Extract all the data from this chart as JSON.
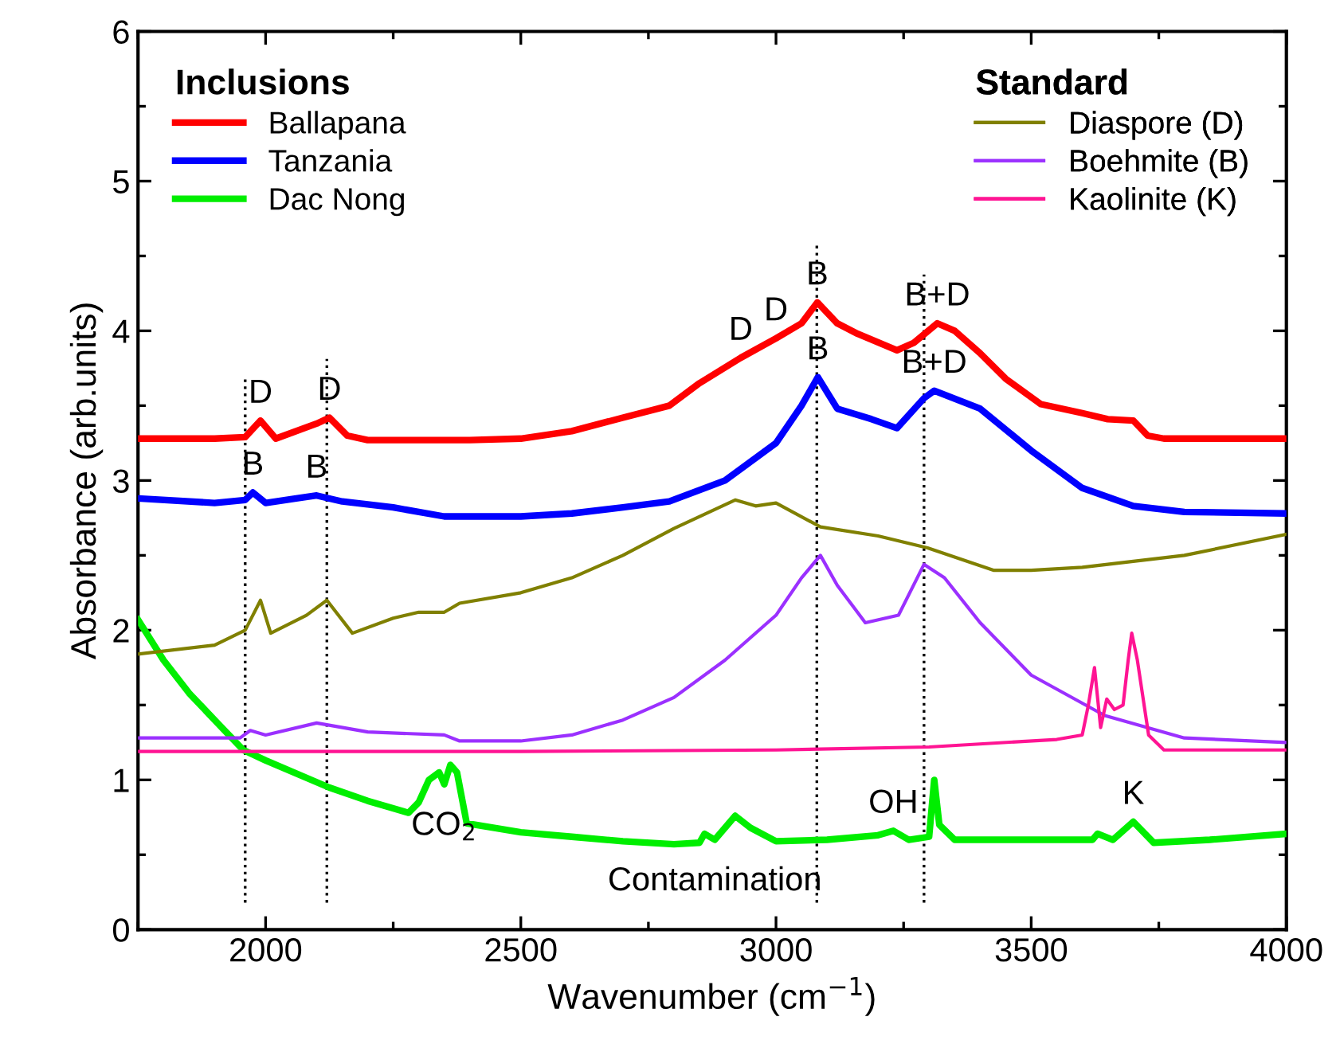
{
  "chart_data": {
    "type": "line",
    "xlabel": "Wavenumber (cm$^{−1}$)",
    "ylabel": "Absorbance (arb.units)",
    "xlim": [
      1750,
      4000
    ],
    "ylim": [
      0,
      6
    ],
    "xticks": [
      2000,
      2500,
      3000,
      3500,
      4000
    ],
    "yticks": [
      0,
      1,
      2,
      3,
      4,
      5,
      6
    ],
    "grid": false,
    "legend": "top",
    "legend_title": [
      "Inclusions",
      "Standard"
    ],
    "line_style": "solid",
    "marker": "none",
    "series": [
      {
        "name": "Ballapana",
        "color": "#ff0000",
        "x": [
          1750,
          1900,
          1960,
          1990,
          2020,
          2100,
          2125,
          2160,
          2200,
          2400,
          2500,
          2600,
          2700,
          2791,
          2850,
          2931,
          3000,
          3050,
          3081,
          3120,
          3160,
          3237,
          3270,
          3316,
          3350,
          3400,
          3450,
          3519,
          3600,
          3650,
          3700,
          3728,
          3760,
          4000
        ],
        "values": [
          3.28,
          3.28,
          3.29,
          3.4,
          3.28,
          3.38,
          3.42,
          3.3,
          3.27,
          3.27,
          3.28,
          3.33,
          3.42,
          3.5,
          3.65,
          3.82,
          3.95,
          4.05,
          4.19,
          4.05,
          3.98,
          3.87,
          3.92,
          4.05,
          4.0,
          3.85,
          3.68,
          3.51,
          3.45,
          3.41,
          3.4,
          3.3,
          3.28,
          3.28
        ]
      },
      {
        "name": "Tanzania",
        "color": "#0000ff",
        "x": [
          1750,
          1900,
          1960,
          1975,
          2000,
          2060,
          2100,
          2150,
          2250,
          2350,
          2500,
          2600,
          2700,
          2791,
          2900,
          3000,
          3050,
          3082,
          3120,
          3187,
          3237,
          3290,
          3310,
          3400,
          3500,
          3600,
          3700,
          3800,
          4000
        ],
        "values": [
          2.88,
          2.85,
          2.87,
          2.92,
          2.85,
          2.88,
          2.9,
          2.86,
          2.82,
          2.76,
          2.76,
          2.78,
          2.82,
          2.86,
          3.0,
          3.25,
          3.5,
          3.69,
          3.48,
          3.41,
          3.35,
          3.55,
          3.6,
          3.48,
          3.2,
          2.95,
          2.83,
          2.79,
          2.78
        ]
      },
      {
        "name": "Dac Nong",
        "color": "#00ee00",
        "x": [
          1750,
          1800,
          1850,
          1900,
          1956,
          2000,
          2124,
          2200,
          2280,
          2300,
          2320,
          2340,
          2350,
          2362,
          2375,
          2394,
          2500,
          2600,
          2700,
          2800,
          2850,
          2860,
          2880,
          2920,
          2950,
          3000,
          3100,
          3200,
          3230,
          3260,
          3300,
          3310,
          3320,
          3350,
          3500,
          3620,
          3630,
          3660,
          3700,
          3740,
          3850,
          4000
        ],
        "values": [
          2.07,
          1.8,
          1.58,
          1.4,
          1.2,
          1.13,
          0.95,
          0.86,
          0.78,
          0.85,
          1.0,
          1.05,
          0.97,
          1.1,
          1.05,
          0.71,
          0.65,
          0.62,
          0.59,
          0.57,
          0.58,
          0.64,
          0.6,
          0.76,
          0.68,
          0.59,
          0.6,
          0.63,
          0.66,
          0.6,
          0.62,
          1.0,
          0.7,
          0.6,
          0.6,
          0.6,
          0.64,
          0.6,
          0.72,
          0.58,
          0.6,
          0.64
        ]
      },
      {
        "name": "Diaspore (D)",
        "color": "#808000",
        "x": [
          1750,
          1900,
          1960,
          1990,
          2010,
          2080,
          2120,
          2170,
          2250,
          2300,
          2350,
          2380,
          2500,
          2600,
          2700,
          2800,
          2920,
          2960,
          3000,
          3087,
          3200,
          3297,
          3427,
          3500,
          3600,
          3800,
          4000
        ],
        "values": [
          1.84,
          1.9,
          2.0,
          2.2,
          1.98,
          2.1,
          2.2,
          1.98,
          2.08,
          2.12,
          2.12,
          2.18,
          2.25,
          2.35,
          2.5,
          2.68,
          2.87,
          2.83,
          2.85,
          2.69,
          2.63,
          2.55,
          2.4,
          2.4,
          2.42,
          2.5,
          2.64
        ]
      },
      {
        "name": "Boehmite (B)",
        "color": "#9b30ff",
        "x": [
          1750,
          1950,
          1970,
          2000,
          2100,
          2200,
          2350,
          2380,
          2500,
          2600,
          2700,
          2800,
          2900,
          3000,
          3050,
          3087,
          3120,
          3175,
          3240,
          3290,
          3330,
          3400,
          3500,
          3644,
          3800,
          4000
        ],
        "values": [
          1.28,
          1.28,
          1.33,
          1.3,
          1.38,
          1.32,
          1.3,
          1.26,
          1.26,
          1.3,
          1.4,
          1.55,
          1.8,
          2.1,
          2.35,
          2.5,
          2.3,
          2.05,
          2.1,
          2.44,
          2.35,
          2.05,
          1.7,
          1.43,
          1.28,
          1.25
        ]
      },
      {
        "name": "Kaolinite (K)",
        "color": "#ff1493",
        "x": [
          1750,
          2500,
          3000,
          3300,
          3550,
          3600,
          3612,
          3624,
          3636,
          3648,
          3663,
          3680,
          3690,
          3697,
          3708,
          3730,
          3760,
          4000
        ],
        "values": [
          1.19,
          1.19,
          1.2,
          1.22,
          1.27,
          1.3,
          1.5,
          1.75,
          1.35,
          1.54,
          1.47,
          1.5,
          1.8,
          1.98,
          1.8,
          1.3,
          1.2,
          1.2
        ]
      }
    ],
    "ref_lines": [
      {
        "axis": "x",
        "value": 1960,
        "color": "#000000",
        "line_style": "dotted"
      },
      {
        "axis": "x",
        "value": 2120,
        "color": "#000000",
        "line_style": "dotted"
      },
      {
        "axis": "x",
        "value": 3080,
        "color": "#000000",
        "line_style": "dotted"
      },
      {
        "axis": "x",
        "value": 3290,
        "color": "#000000",
        "line_style": "dotted"
      }
    ],
    "annotations": [
      {
        "text": "D",
        "x": 1990,
        "y": 3.4
      },
      {
        "text": "D",
        "x": 2125,
        "y": 3.42
      },
      {
        "text": "B",
        "x": 1975,
        "y": 2.92
      },
      {
        "text": "B",
        "x": 2100,
        "y": 2.9
      },
      {
        "text": "D",
        "x": 2931,
        "y": 3.82
      },
      {
        "text": "D",
        "x": 3000,
        "y": 3.95
      },
      {
        "text": "B",
        "x": 3081,
        "y": 4.19
      },
      {
        "text": "B+D",
        "x": 3316,
        "y": 4.05
      },
      {
        "text": "B",
        "x": 3082,
        "y": 3.69
      },
      {
        "text": "B+D",
        "x": 3310,
        "y": 3.6
      },
      {
        "text": "CO$_{2}$",
        "x": 2350,
        "y": 0.97
      },
      {
        "text": "Contamination",
        "x": 2880,
        "y": 0.6
      },
      {
        "text": "OH",
        "x": 3230,
        "y": 0.66
      },
      {
        "text": "K",
        "x": 3700,
        "y": 0.72
      }
    ]
  }
}
